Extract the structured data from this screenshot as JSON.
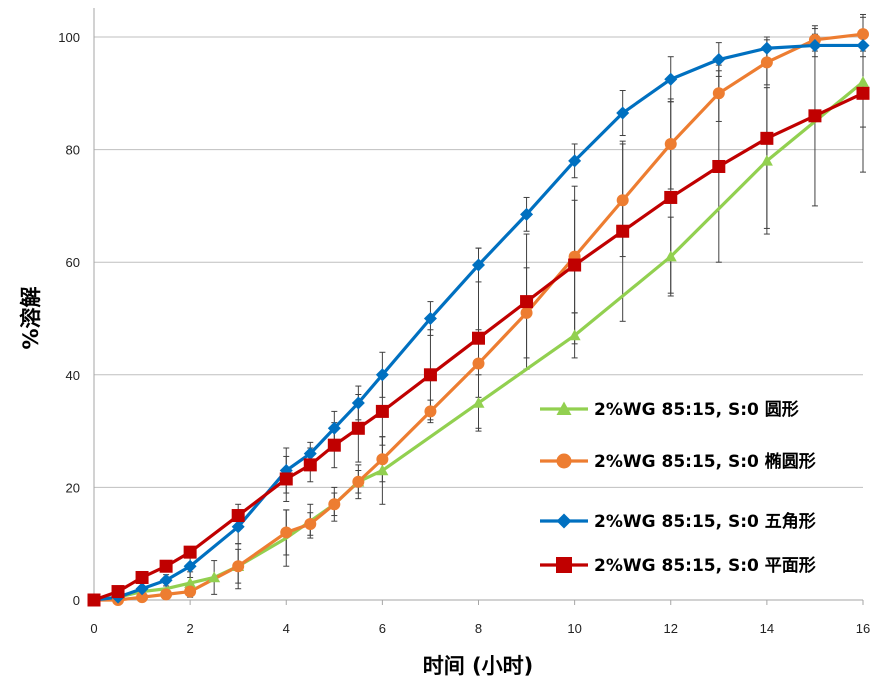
{
  "chart_data": {
    "type": "line",
    "title": "",
    "xlabel": "时间 (小时)",
    "ylabel": "%溶解",
    "xlim": [
      0,
      16
    ],
    "ylim": [
      0,
      100
    ],
    "x_ticks": [
      "0",
      "2",
      "4",
      "6",
      "8",
      "10",
      "12",
      "14",
      "16"
    ],
    "y_ticks": [
      "0",
      "20",
      "40",
      "60",
      "80",
      "100"
    ],
    "grid": "horizontal",
    "legend_position": "bottom-right",
    "series": [
      {
        "name": "2%WG 85:15, S:0 圆形",
        "color": "#92d050",
        "marker": "triangle",
        "x": [
          0,
          0.5,
          1,
          1.5,
          2,
          2.5,
          3,
          4,
          4.5,
          5,
          5.5,
          6,
          8,
          10,
          12,
          14,
          16
        ],
        "y": [
          0,
          0.5,
          1.5,
          2,
          3,
          4,
          6,
          11,
          14,
          17,
          21,
          23,
          35,
          47,
          61,
          78,
          92
        ],
        "err": [
          0,
          0,
          1,
          1,
          2,
          3,
          4,
          5,
          3,
          3,
          3,
          6,
          5,
          4,
          7,
          13,
          8
        ]
      },
      {
        "name": "2%WG 85:15, S:0 椭圆形",
        "color": "#ed7d31",
        "marker": "circle",
        "x": [
          0,
          0.5,
          1,
          1.5,
          2,
          3,
          4,
          4.5,
          5,
          5.5,
          6,
          7,
          8,
          9,
          10,
          11,
          12,
          13,
          14,
          15,
          16
        ],
        "y": [
          0,
          0,
          0.5,
          1,
          1.5,
          6,
          12,
          13.5,
          17,
          21,
          25,
          33.5,
          42,
          51,
          61,
          71,
          81,
          90,
          95.5,
          99.5,
          100.5
        ],
        "err": [
          0,
          0,
          0,
          0,
          1,
          3,
          4,
          2,
          2,
          2,
          4,
          2,
          6,
          8,
          10,
          10,
          8,
          5,
          4,
          2,
          3
        ]
      },
      {
        "name": "2%WG 85:15, S:0 五角形",
        "color": "#0070c0",
        "marker": "diamond",
        "x": [
          0,
          0.5,
          1,
          1.5,
          2,
          3,
          4,
          4.5,
          5,
          5.5,
          6,
          7,
          8,
          9,
          10,
          11,
          12,
          13,
          14,
          15,
          16
        ],
        "y": [
          0,
          0.5,
          2,
          3.5,
          6,
          13,
          23,
          26,
          30.5,
          35,
          40,
          50,
          59.5,
          68.5,
          78,
          86.5,
          92.5,
          96,
          98,
          98.5,
          98.5
        ],
        "err": [
          0,
          0,
          1,
          1,
          2,
          3,
          4,
          2,
          3,
          3,
          4,
          3,
          3,
          3,
          3,
          4,
          4,
          3,
          2,
          2,
          2
        ]
      },
      {
        "name": "2%WG 85:15, S:0 平面形",
        "color": "#c00000",
        "marker": "square",
        "x": [
          0,
          0.5,
          1,
          1.5,
          2,
          3,
          4,
          4.5,
          5,
          5.5,
          6,
          7,
          8,
          9,
          10,
          11,
          12,
          13,
          14,
          15,
          16
        ],
        "y": [
          0,
          1.5,
          4,
          6,
          8.5,
          15,
          21.5,
          24,
          27.5,
          30.5,
          33.5,
          40,
          46.5,
          53,
          59.5,
          65.5,
          71.5,
          77,
          82,
          86,
          90
        ],
        "err": [
          0,
          0,
          0,
          1,
          1,
          2,
          4,
          3,
          4,
          6,
          6,
          8,
          16,
          12,
          14,
          16,
          17,
          17,
          16,
          16,
          14
        ]
      }
    ]
  }
}
